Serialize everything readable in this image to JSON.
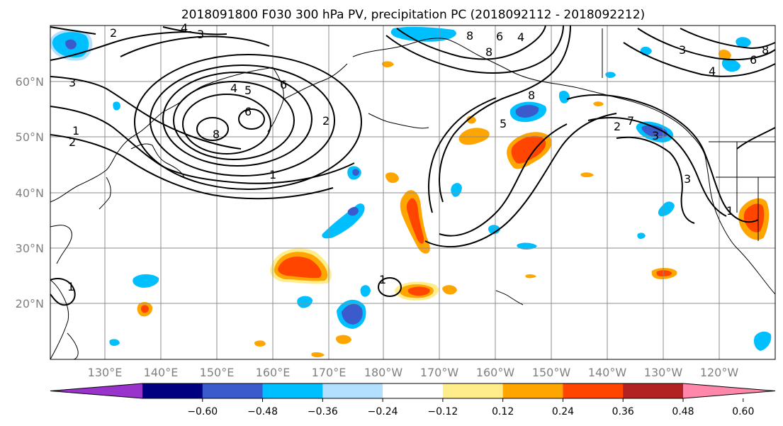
{
  "title": "2018091800 F030 300 hPa PV, precipitation PC (2018092112 - 2018092212)",
  "lat_labels": [
    "60°N",
    "50°N",
    "40°N",
    "30°N",
    "20°N"
  ],
  "lon_labels": [
    "130°E",
    "140°E",
    "150°E",
    "160°E",
    "170°E",
    "180°W",
    "170°W",
    "160°W",
    "150°W",
    "140°W",
    "130°W",
    "120°W"
  ],
  "colorbar": {
    "colors": [
      "#9933cc",
      "#000080",
      "#3b5bcc",
      "#00bfff",
      "#b3e0ff",
      "#ffffff",
      "#ffec8b",
      "#ffa500",
      "#ff4500",
      "#b22222",
      "#ff88aa"
    ],
    "ticks": [
      "−0.60",
      "−0.48",
      "−0.36",
      "−0.24",
      "−0.12",
      "0.12",
      "0.24",
      "0.36",
      "0.48",
      "0.60"
    ]
  },
  "contour_labels": [
    "1",
    "2",
    "3",
    "4",
    "5",
    "6",
    "7",
    "8"
  ],
  "colors": {
    "positive_light": "#ffec8b",
    "positive_mid": "#ffa500",
    "positive_strong": "#ff4500",
    "negative_light": "#b3e0ff",
    "negative_mid": "#00bfff",
    "negative_strong": "#3b5bcc"
  }
}
